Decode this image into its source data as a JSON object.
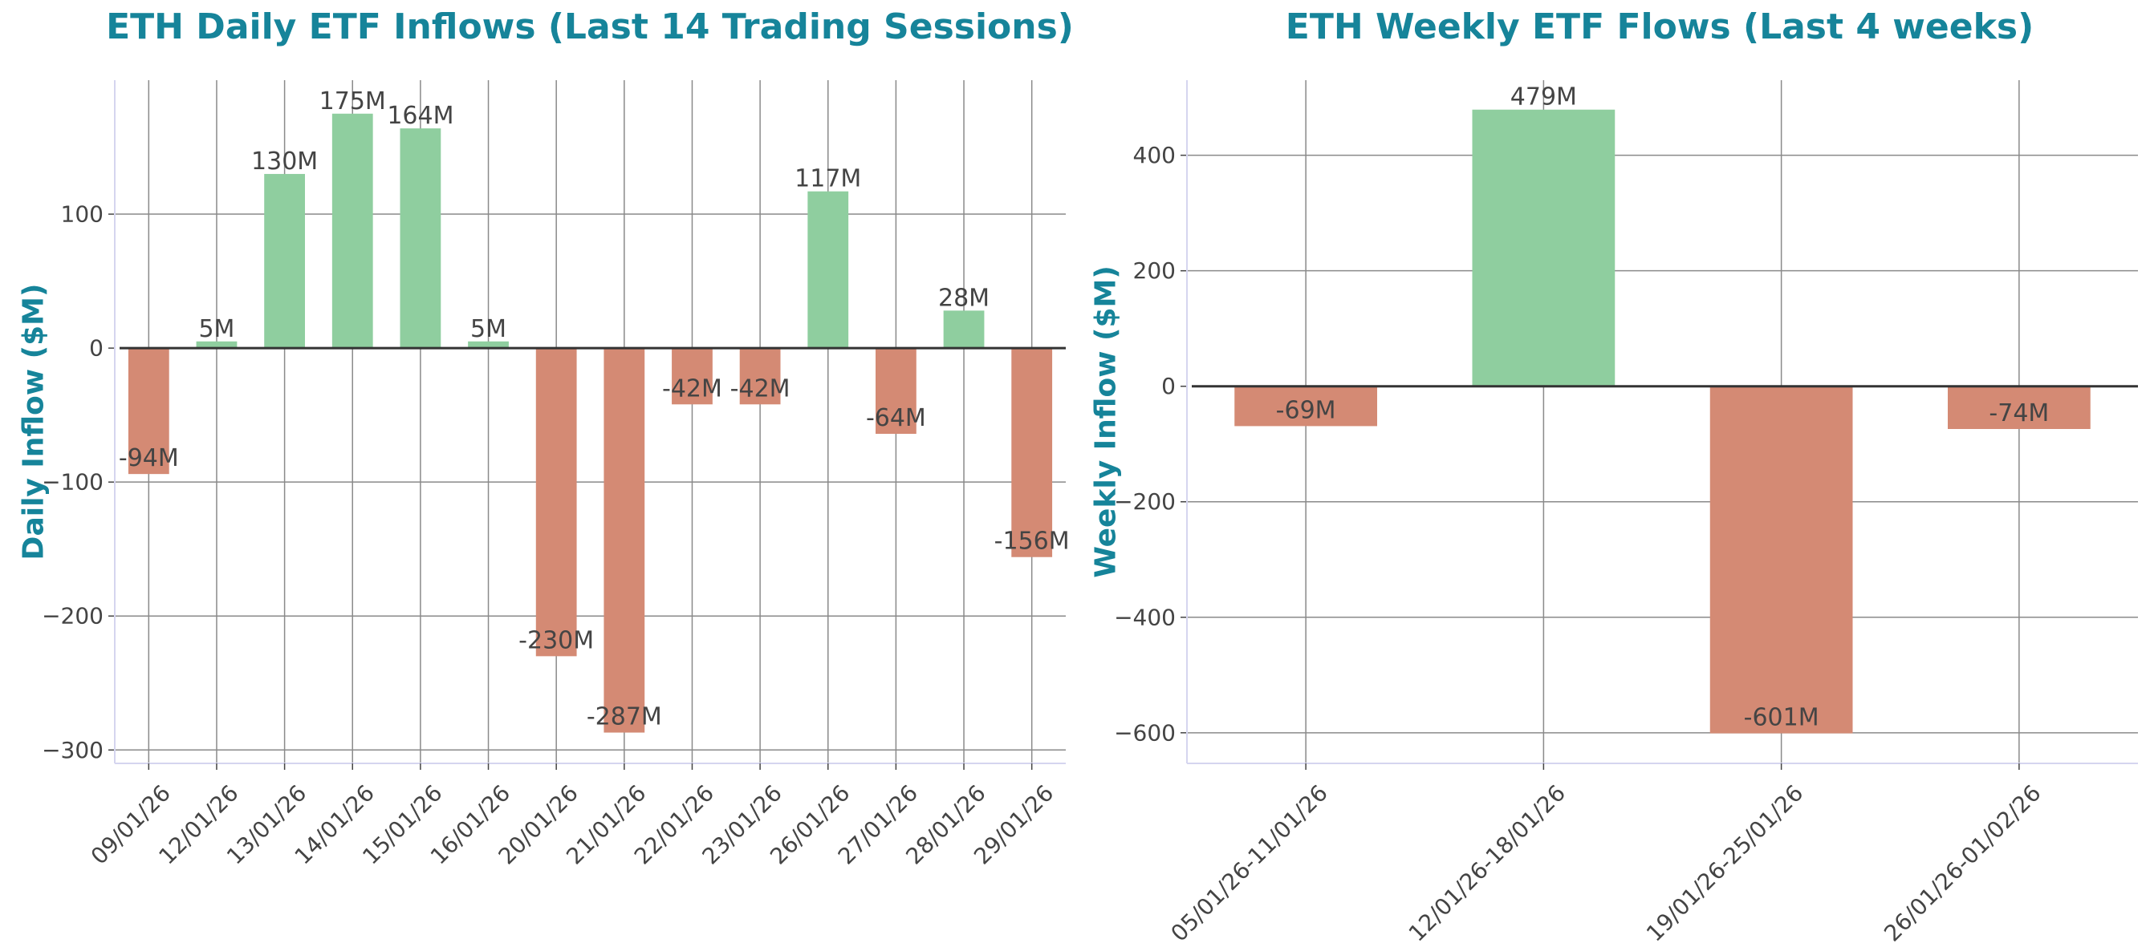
{
  "colors": {
    "title": "#16849a",
    "positive": "#8fce9f",
    "negative": "#d48a74",
    "grid": "#8a8a8a",
    "zero": "#333333",
    "spine": "#d5d5ef",
    "text": "#444444"
  },
  "chart_data": [
    {
      "type": "bar",
      "title": "ETH Daily ETF Inflows (Last 14 Trading Sessions)",
      "xlabel": "",
      "ylabel": "Daily Inflow ($M)",
      "ylim": [
        -310,
        200
      ],
      "yticks": [
        -300,
        -200,
        -100,
        0,
        100
      ],
      "ytick_labels": [
        "−300",
        "−200",
        "−100",
        "0",
        "100"
      ],
      "grid": true,
      "categories": [
        "09/01/26",
        "12/01/26",
        "13/01/26",
        "14/01/26",
        "15/01/26",
        "16/01/26",
        "20/01/26",
        "21/01/26",
        "22/01/26",
        "23/01/26",
        "26/01/26",
        "27/01/26",
        "28/01/26",
        "29/01/26"
      ],
      "values": [
        -94,
        5,
        130,
        175,
        164,
        5,
        -230,
        -287,
        -42,
        -42,
        117,
        -64,
        28,
        -156
      ],
      "labels": [
        "-94M",
        "5M",
        "130M",
        "175M",
        "164M",
        "5M",
        "-230M",
        "-287M",
        "-42M",
        "-42M",
        "117M",
        "-64M",
        "28M",
        "-156M"
      ]
    },
    {
      "type": "bar",
      "title": "ETH Weekly ETF Flows (Last 4 weeks)",
      "xlabel": "",
      "ylabel": "Weekly Inflow ($M)",
      "ylim": [
        -653,
        530
      ],
      "yticks": [
        -600,
        -400,
        -200,
        0,
        200,
        400
      ],
      "ytick_labels": [
        "−600",
        "−400",
        "−200",
        "0",
        "200",
        "400"
      ],
      "grid": true,
      "categories": [
        "05/01/26-11/01/26",
        "12/01/26-18/01/26",
        "19/01/26-25/01/26",
        "26/01/26-01/02/26"
      ],
      "values": [
        -69,
        479,
        -601,
        -74
      ],
      "labels": [
        "-69M",
        "479M",
        "-601M",
        "-74M"
      ]
    }
  ]
}
